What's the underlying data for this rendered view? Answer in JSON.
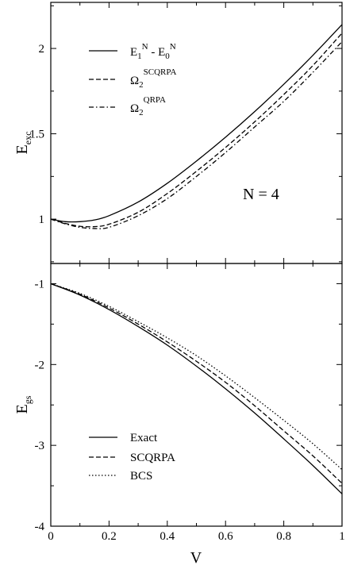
{
  "chart_data": [
    {
      "type": "line",
      "panel": "top",
      "ylabel": "E",
      "ylabel_sub": "exc",
      "xlim": [
        0,
        1
      ],
      "ylim": [
        0.74,
        2.27
      ],
      "xticks": [
        0,
        0.2,
        0.4,
        0.6,
        0.8,
        1
      ],
      "yticks": [
        1,
        1.5,
        2
      ],
      "ytick_labels": [
        "1",
        "1.5",
        "2"
      ],
      "annotation": "N = 4",
      "legend_placement": "top-left",
      "series": [
        {
          "name": "E1N - E0N",
          "label_parts": {
            "a": "E",
            "a_sub": "1",
            "a_sup": "N",
            "mid": " - E",
            "b_sub": "0",
            "b_sup": "N"
          },
          "style": "solid",
          "x": [
            0,
            0.05,
            0.1,
            0.15,
            0.2,
            0.3,
            0.4,
            0.5,
            0.6,
            0.7,
            0.8,
            0.9,
            1.0
          ],
          "y": [
            1.0,
            0.985,
            0.985,
            0.995,
            1.02,
            1.1,
            1.21,
            1.34,
            1.48,
            1.63,
            1.79,
            1.96,
            2.14
          ]
        },
        {
          "name": "Ω2 SCQRPA",
          "label_parts": {
            "a": "Ω",
            "a_sub": "2",
            "a_sup": "SCQRPA"
          },
          "style": "dashed",
          "x": [
            0,
            0.05,
            0.1,
            0.15,
            0.2,
            0.3,
            0.4,
            0.5,
            0.6,
            0.7,
            0.8,
            0.9,
            1.0
          ],
          "y": [
            1.0,
            0.975,
            0.958,
            0.956,
            0.97,
            1.04,
            1.15,
            1.28,
            1.42,
            1.57,
            1.73,
            1.9,
            2.09
          ]
        },
        {
          "name": "Ω2 QRPA",
          "label_parts": {
            "a": "Ω",
            "a_sub": "2",
            "a_sup": "QRPA"
          },
          "style": "dashdot",
          "x": [
            0,
            0.05,
            0.1,
            0.15,
            0.2,
            0.3,
            0.4,
            0.5,
            0.6,
            0.7,
            0.8,
            0.9,
            1.0
          ],
          "y": [
            1.0,
            0.972,
            0.952,
            0.945,
            0.952,
            1.02,
            1.12,
            1.25,
            1.39,
            1.54,
            1.69,
            1.86,
            2.04
          ]
        }
      ]
    },
    {
      "type": "line",
      "panel": "bottom",
      "xlabel": "V",
      "ylabel": "E",
      "ylabel_sub": "gs",
      "xlim": [
        0,
        1
      ],
      "ylim": [
        -4.0,
        -0.75
      ],
      "xticks": [
        0,
        0.2,
        0.4,
        0.6,
        0.8,
        1
      ],
      "xtick_labels": [
        "0",
        "0.2",
        "0.4",
        "0.6",
        "0.8",
        "1"
      ],
      "yticks": [
        -1,
        -2,
        -3,
        -4
      ],
      "ytick_labels": [
        "-1",
        "-2",
        "-3",
        "-4"
      ],
      "legend_placement": "bottom-left",
      "series": [
        {
          "name": "Exact",
          "style": "solid",
          "x": [
            0,
            0.1,
            0.2,
            0.3,
            0.4,
            0.5,
            0.6,
            0.7,
            0.8,
            0.9,
            1.0
          ],
          "y": [
            -1.0,
            -1.14,
            -1.32,
            -1.53,
            -1.76,
            -2.02,
            -2.3,
            -2.6,
            -2.92,
            -3.25,
            -3.6
          ]
        },
        {
          "name": "SCQRPA",
          "style": "dashed",
          "x": [
            0,
            0.1,
            0.2,
            0.3,
            0.4,
            0.5,
            0.6,
            0.7,
            0.8,
            0.9,
            1.0
          ],
          "y": [
            -1.0,
            -1.13,
            -1.3,
            -1.5,
            -1.72,
            -1.96,
            -2.22,
            -2.51,
            -2.82,
            -3.13,
            -3.47
          ]
        },
        {
          "name": "BCS",
          "style": "dotted",
          "x": [
            0,
            0.1,
            0.2,
            0.3,
            0.4,
            0.5,
            0.6,
            0.7,
            0.8,
            0.9,
            1.0
          ],
          "y": [
            -1.0,
            -1.12,
            -1.28,
            -1.47,
            -1.67,
            -1.89,
            -2.14,
            -2.41,
            -2.69,
            -2.98,
            -3.3
          ]
        }
      ]
    }
  ]
}
